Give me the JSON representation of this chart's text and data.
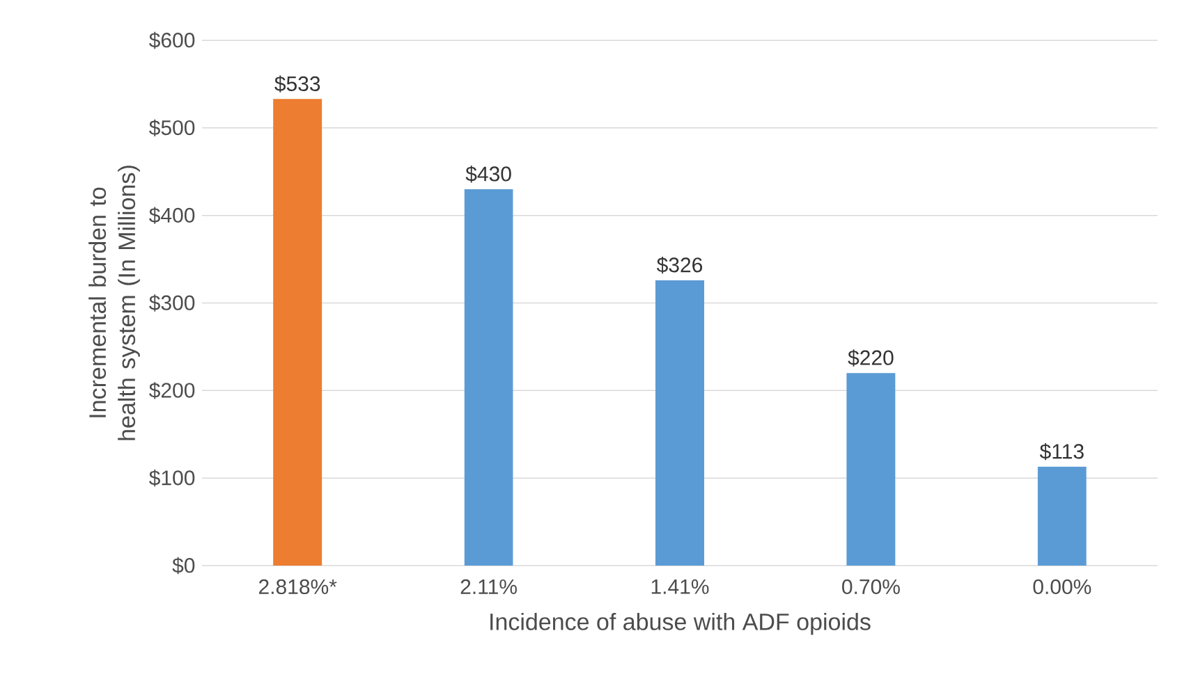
{
  "chart_data": {
    "type": "bar",
    "xlabel": "Incidence of abuse with ADF opioids",
    "ylabel": "Incremental burden to health system (In Millions)",
    "categories": [
      "2.818%*",
      "2.11%",
      "1.41%",
      "0.70%",
      "0.00%"
    ],
    "values": [
      533,
      430,
      326,
      220,
      113
    ],
    "value_labels": [
      "$533",
      "$430",
      "$326",
      "$220",
      "$113"
    ],
    "colors": [
      "#ed7d31",
      "#5b9bd5",
      "#5b9bd5",
      "#5b9bd5",
      "#5b9bd5"
    ],
    "ylim": [
      0,
      600
    ],
    "yticks": [
      {
        "value": 0,
        "label": "$0"
      },
      {
        "value": 100,
        "label": "$100"
      },
      {
        "value": 200,
        "label": "$200"
      },
      {
        "value": 300,
        "label": "$300"
      },
      {
        "value": 400,
        "label": "$400"
      },
      {
        "value": 500,
        "label": "$500"
      },
      {
        "value": 600,
        "label": "$600"
      }
    ],
    "grid": "y"
  }
}
